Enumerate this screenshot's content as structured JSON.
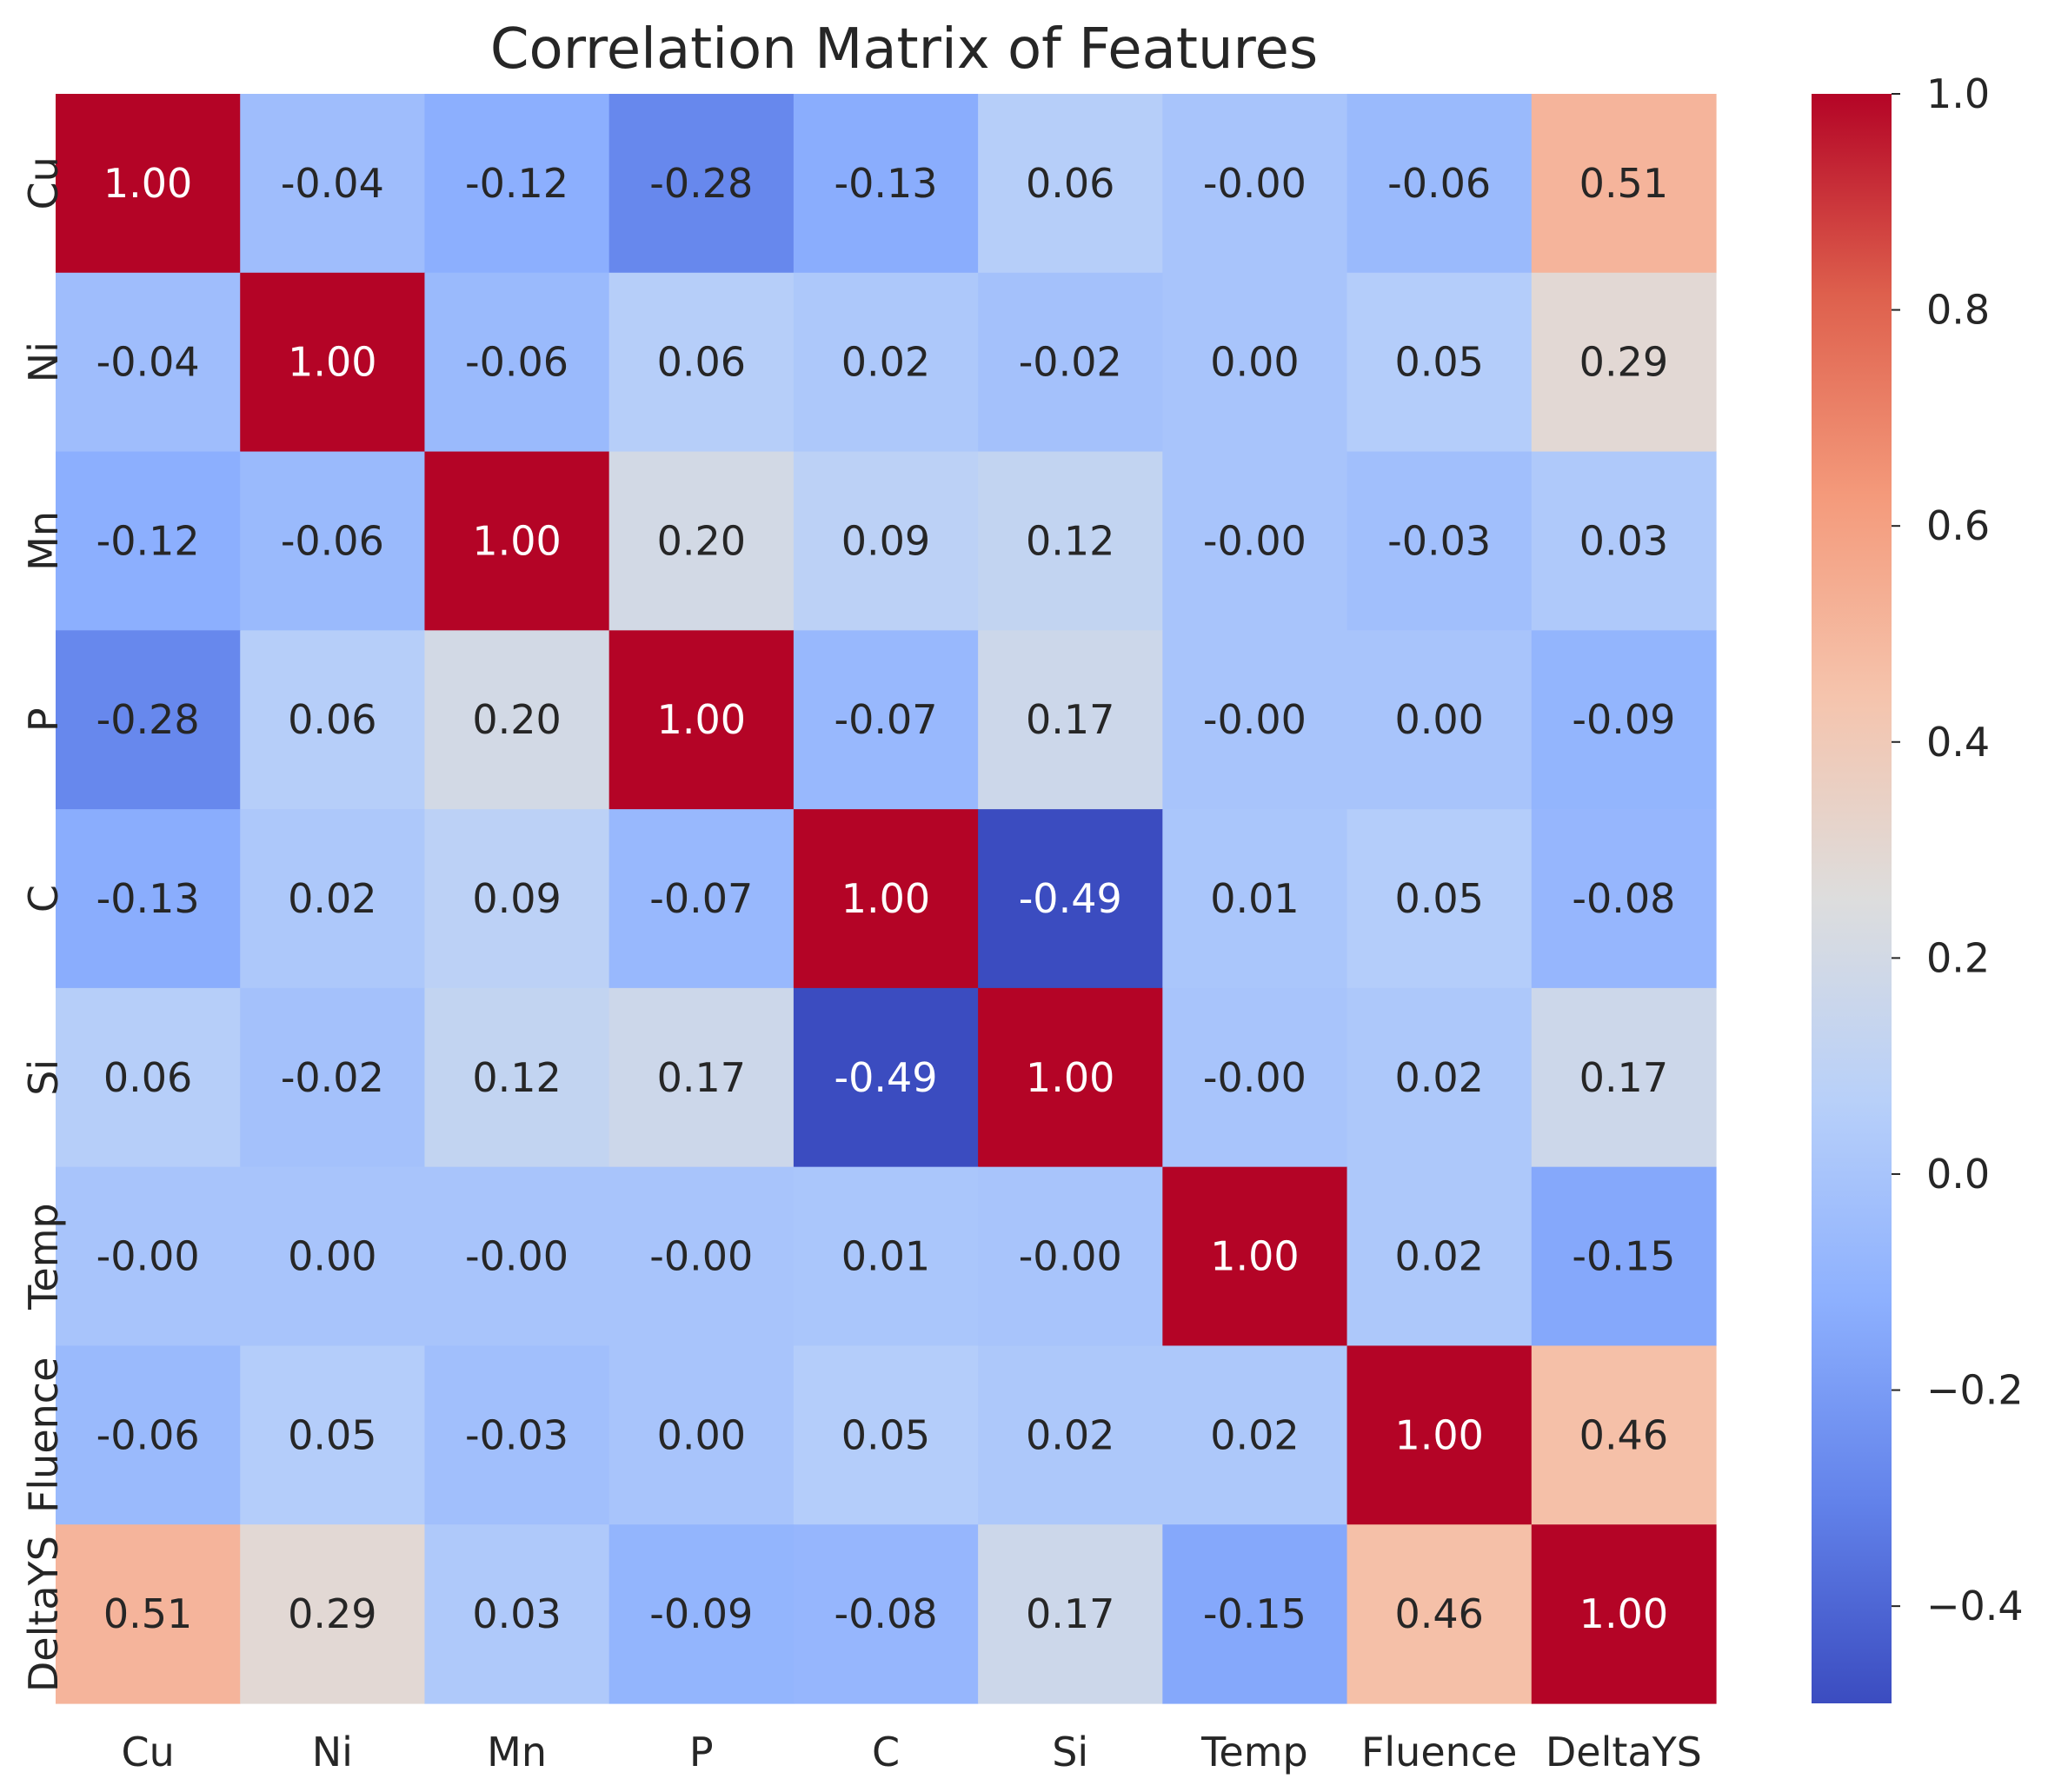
{
  "chart_data": {
    "type": "heatmap",
    "title": "Correlation Matrix of Features",
    "xlabel": "",
    "ylabel": "",
    "x_categories": [
      "Cu",
      "Ni",
      "Mn",
      "P",
      "C",
      "Si",
      "Temp",
      "Fluence",
      "DeltaYS"
    ],
    "y_categories": [
      "Cu",
      "Ni",
      "Mn",
      "P",
      "C",
      "Si",
      "Temp",
      "Fluence",
      "DeltaYS"
    ],
    "values": [
      [
        1.0,
        -0.04,
        -0.12,
        -0.28,
        -0.13,
        0.06,
        -0.0,
        -0.06,
        0.51
      ],
      [
        -0.04,
        1.0,
        -0.06,
        0.06,
        0.02,
        -0.02,
        0.0,
        0.05,
        0.29
      ],
      [
        -0.12,
        -0.06,
        1.0,
        0.2,
        0.09,
        0.12,
        -0.0,
        -0.03,
        0.03
      ],
      [
        -0.28,
        0.06,
        0.2,
        1.0,
        -0.07,
        0.17,
        -0.0,
        0.0,
        -0.09
      ],
      [
        -0.13,
        0.02,
        0.09,
        -0.07,
        1.0,
        -0.49,
        0.01,
        0.05,
        -0.08
      ],
      [
        0.06,
        -0.02,
        0.12,
        0.17,
        -0.49,
        1.0,
        -0.0,
        0.02,
        0.17
      ],
      [
        -0.0,
        0.0,
        -0.0,
        -0.0,
        0.01,
        -0.0,
        1.0,
        0.02,
        -0.15
      ],
      [
        -0.06,
        0.05,
        -0.03,
        0.0,
        0.05,
        0.02,
        0.02,
        1.0,
        0.46
      ],
      [
        0.51,
        0.29,
        0.03,
        -0.09,
        -0.08,
        0.17,
        -0.15,
        0.46,
        1.0
      ]
    ],
    "cell_labels": [
      [
        "1.00",
        "-0.04",
        "-0.12",
        "-0.28",
        "-0.13",
        "0.06",
        "-0.00",
        "-0.06",
        "0.51"
      ],
      [
        "-0.04",
        "1.00",
        "-0.06",
        "0.06",
        "0.02",
        "-0.02",
        "0.00",
        "0.05",
        "0.29"
      ],
      [
        "-0.12",
        "-0.06",
        "1.00",
        "0.20",
        "0.09",
        "0.12",
        "-0.00",
        "-0.03",
        "0.03"
      ],
      [
        "-0.28",
        "0.06",
        "0.20",
        "1.00",
        "-0.07",
        "0.17",
        "-0.00",
        "0.00",
        "-0.09"
      ],
      [
        "-0.13",
        "0.02",
        "0.09",
        "-0.07",
        "1.00",
        "-0.49",
        "0.01",
        "0.05",
        "-0.08"
      ],
      [
        "0.06",
        "-0.02",
        "0.12",
        "0.17",
        "-0.49",
        "1.00",
        "-0.00",
        "0.02",
        "0.17"
      ],
      [
        "-0.00",
        "0.00",
        "-0.00",
        "-0.00",
        "0.01",
        "-0.00",
        "1.00",
        "0.02",
        "-0.15"
      ],
      [
        "-0.06",
        "0.05",
        "-0.03",
        "0.00",
        "0.05",
        "0.02",
        "0.02",
        "1.00",
        "0.46"
      ],
      [
        "0.51",
        "0.29",
        "0.03",
        "-0.09",
        "-0.08",
        "0.17",
        "-0.15",
        "0.46",
        "1.00"
      ]
    ],
    "colormap": "coolwarm",
    "vmin": -0.49,
    "vmax": 1.0,
    "colorbar": {
      "ticks": [
        -0.4,
        -0.2,
        0.0,
        0.2,
        0.4,
        0.6,
        0.8,
        1.0
      ],
      "tick_labels": [
        "−0.4",
        "−0.2",
        "0.0",
        "0.2",
        "0.4",
        "0.6",
        "0.8",
        "1.0"
      ]
    },
    "annotation_colors": {
      "light": "#ffffff",
      "dark": "#262626"
    }
  }
}
